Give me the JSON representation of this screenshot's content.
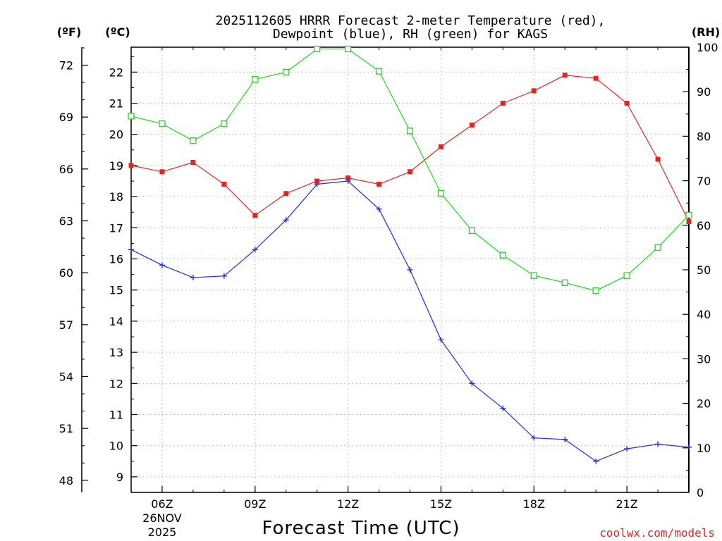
{
  "chart_data": {
    "type": "line",
    "title_line1": "2025112605 HRRR Forecast 2-meter Temperature (red),",
    "title_line2": "Dewpoint (blue), RH (green) for KAGS",
    "xlabel": "Forecast Time (UTC)",
    "credit": "coolwx.com/models",
    "units": {
      "fahrenheit": "(ºF)",
      "celsius": "(ºC)",
      "rh": "(RH)"
    },
    "x": [
      5,
      6,
      7,
      8,
      9,
      10,
      11,
      12,
      13,
      14,
      15,
      16,
      17,
      18,
      19,
      20,
      21,
      22,
      23
    ],
    "xlim": [
      5,
      23
    ],
    "x_ticks": [
      {
        "x": 6,
        "label": "06Z",
        "sub1": "26NOV",
        "sub2": "2025"
      },
      {
        "x": 9,
        "label": "09Z"
      },
      {
        "x": 12,
        "label": "12Z"
      },
      {
        "x": 15,
        "label": "15Z"
      },
      {
        "x": 18,
        "label": "18Z"
      },
      {
        "x": 21,
        "label": "21Z"
      }
    ],
    "celsius_lim": [
      8.5,
      22.8
    ],
    "celsius_ticks": [
      "9",
      "10",
      "11",
      "12",
      "13",
      "14",
      "15",
      "16",
      "17",
      "18",
      "19",
      "20",
      "21",
      "22"
    ],
    "fahrenheit_ticks": [
      "48",
      "51",
      "54",
      "57",
      "60",
      "63",
      "66",
      "69",
      "72"
    ],
    "rh_lim": [
      0,
      100
    ],
    "rh_ticks": [
      "0",
      "10",
      "20",
      "30",
      "40",
      "50",
      "60",
      "70",
      "80",
      "90",
      "100"
    ],
    "series": [
      {
        "name": "Temperature",
        "unit": "C",
        "color": "#e8231e",
        "marker": "filled-square",
        "values": [
          19.0,
          18.8,
          19.1,
          18.4,
          17.4,
          18.1,
          18.5,
          18.6,
          18.4,
          18.8,
          19.6,
          20.3,
          21.0,
          21.4,
          21.9,
          21.8,
          21.0,
          19.2,
          17.2
        ]
      },
      {
        "name": "Dewpoint",
        "unit": "C",
        "color": "#1e2ee8",
        "marker": "plus",
        "values": [
          16.3,
          15.8,
          15.4,
          15.45,
          16.3,
          17.25,
          18.4,
          18.5,
          17.6,
          15.65,
          13.4,
          12.0,
          11.2,
          10.25,
          10.2,
          9.5,
          9.9,
          10.05,
          9.95
        ]
      },
      {
        "name": "RH",
        "unit": "%",
        "color": "#1ed81e",
        "marker": "open-square",
        "values": [
          84.5,
          82.8,
          79.0,
          82.8,
          92.8,
          94.4,
          99.6,
          99.6,
          94.6,
          81.2,
          67.2,
          58.8,
          53.3,
          48.7,
          47.1,
          45.3,
          48.7,
          55.0,
          62.3
        ]
      }
    ]
  }
}
